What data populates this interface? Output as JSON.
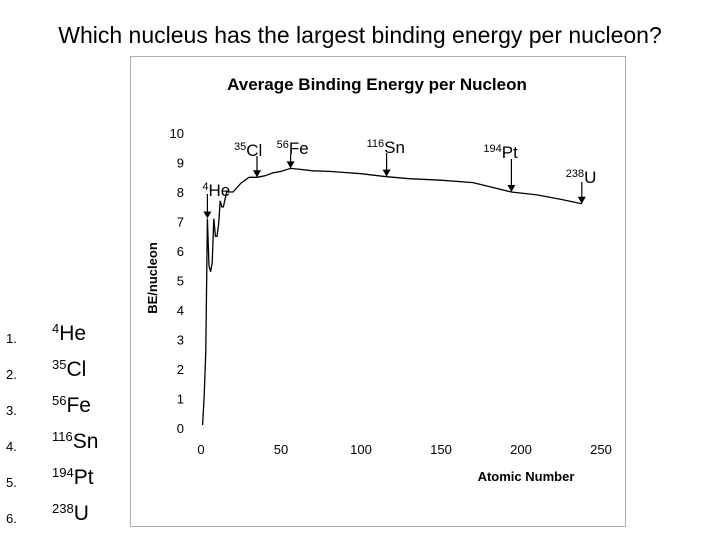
{
  "question": "Which nucleus has the largest binding energy per nucleon?",
  "options": [
    {
      "num": "1.",
      "mass": "4",
      "symbol": "He"
    },
    {
      "num": "2.",
      "mass": "35",
      "symbol": "Cl"
    },
    {
      "num": "3.",
      "mass": "56",
      "symbol": "Fe"
    },
    {
      "num": "4.",
      "mass": "116",
      "symbol": "Sn"
    },
    {
      "num": "5.",
      "mass": "194",
      "symbol": "Pt"
    },
    {
      "num": "6.",
      "mass": "238",
      "symbol": "U"
    }
  ],
  "colors": {
    "frame_bg": "#ffffff",
    "frame_border": "#b0b0b0",
    "curve": "#000000"
  },
  "chart_data": {
    "type": "line",
    "title": "Average Binding Energy per Nucleon",
    "xlabel": "Atomic Number",
    "ylabel": "BE/nucleon",
    "xlim": [
      0,
      250
    ],
    "ylim": [
      0,
      10
    ],
    "xticks": [
      "0",
      "50",
      "100",
      "150",
      "200",
      "250"
    ],
    "yticks": [
      "0",
      "1",
      "2",
      "3",
      "4",
      "5",
      "6",
      "7",
      "8",
      "9",
      "10"
    ],
    "grid": false,
    "series": [
      {
        "x": [
          1,
          2,
          3,
          4,
          5,
          6,
          7,
          8,
          9,
          10,
          11,
          12,
          13,
          14,
          16,
          20,
          25,
          30,
          35,
          40,
          45,
          50,
          56,
          60,
          70,
          80,
          90,
          100,
          116,
          130,
          150,
          170,
          194,
          210,
          225,
          238
        ],
        "y": [
          0.1,
          1.1,
          2.6,
          7.1,
          5.5,
          5.3,
          5.6,
          7.1,
          6.5,
          6.5,
          6.9,
          7.7,
          7.5,
          7.5,
          8.0,
          8.0,
          8.3,
          8.5,
          8.5,
          8.55,
          8.65,
          8.7,
          8.8,
          8.78,
          8.72,
          8.7,
          8.66,
          8.62,
          8.52,
          8.45,
          8.4,
          8.32,
          8.0,
          7.9,
          7.75,
          7.6
        ]
      }
    ],
    "annotations": [
      {
        "mass": "4",
        "symbol": "He",
        "x": 4,
        "y": 7.1
      },
      {
        "mass": "35",
        "symbol": "Cl",
        "x": 35,
        "y": 8.5
      },
      {
        "mass": "56",
        "symbol": "Fe",
        "x": 56,
        "y": 8.8
      },
      {
        "mass": "116",
        "symbol": "Sn",
        "x": 116,
        "y": 8.52
      },
      {
        "mass": "194",
        "symbol": "Pt",
        "x": 194,
        "y": 8.0
      },
      {
        "mass": "238",
        "symbol": "U",
        "x": 238,
        "y": 7.6
      }
    ]
  }
}
